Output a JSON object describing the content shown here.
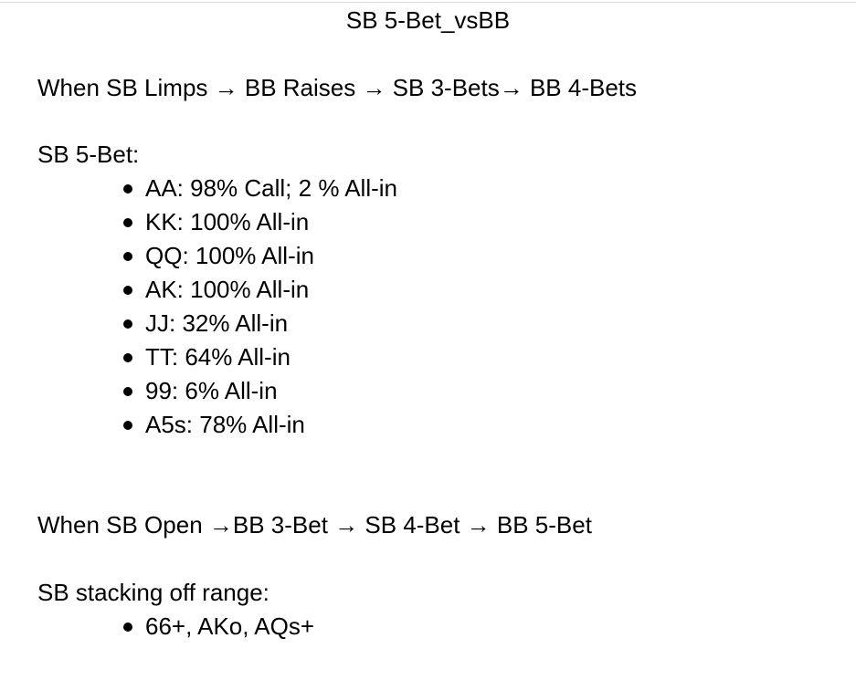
{
  "document": {
    "title": "SB 5-Bet_vsBB",
    "section1": {
      "heading": "When SB Limps → BB Raises → SB 3-Bets→ BB 4-Bets",
      "subheading": "SB 5-Bet:",
      "items": [
        "AA: 98% Call; 2 % All-in",
        "KK: 100% All-in",
        "QQ: 100% All-in",
        "AK: 100% All-in",
        "JJ: 32% All-in",
        "TT: 64% All-in",
        "99: 6% All-in",
        "A5s: 78% All-in"
      ]
    },
    "section2": {
      "heading": "When SB Open →BB 3-Bet → SB 4-Bet → BB 5-Bet",
      "subheading": "SB stacking off range:",
      "items": [
        "66+, AKo, AQs+"
      ]
    }
  }
}
